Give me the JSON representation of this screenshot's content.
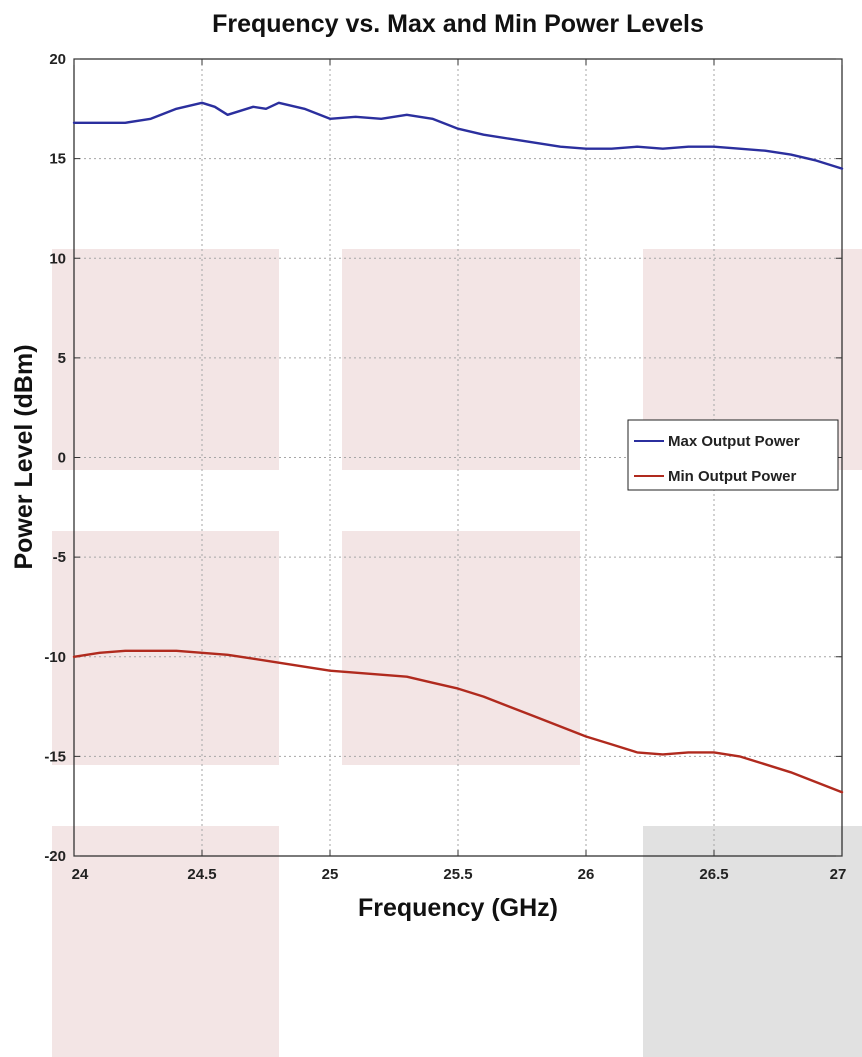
{
  "chart_data": {
    "type": "line",
    "title": "Frequency vs. Max and Min Power Levels",
    "xlabel": "Frequency (GHz)",
    "ylabel": "Power Level (dBm)",
    "xlim": [
      24,
      27
    ],
    "ylim": [
      -20,
      20
    ],
    "x_ticks": [
      "24",
      "24.5",
      "25",
      "25.5",
      "26",
      "26.5",
      "27"
    ],
    "y_ticks": [
      "20",
      "15",
      "10",
      "5",
      "0",
      "-5",
      "-10",
      "-15",
      "-20"
    ],
    "grid": true,
    "legend_position": "right",
    "series": [
      {
        "name": "Max Output Power",
        "color": "#2b2f9e",
        "x": [
          24.0,
          24.1,
          24.2,
          24.3,
          24.4,
          24.5,
          24.55,
          24.6,
          24.65,
          24.7,
          24.75,
          24.8,
          24.9,
          25.0,
          25.1,
          25.2,
          25.3,
          25.4,
          25.5,
          25.6,
          25.7,
          25.8,
          25.9,
          26.0,
          26.1,
          26.2,
          26.3,
          26.4,
          26.5,
          26.6,
          26.7,
          26.8,
          26.9,
          27.0
        ],
        "values": [
          16.8,
          16.8,
          16.8,
          17.0,
          17.5,
          17.8,
          17.6,
          17.2,
          17.4,
          17.6,
          17.5,
          17.8,
          17.5,
          17.0,
          17.1,
          17.0,
          17.2,
          17.0,
          16.5,
          16.2,
          16.0,
          15.8,
          15.6,
          15.5,
          15.5,
          15.6,
          15.5,
          15.6,
          15.6,
          15.5,
          15.4,
          15.2,
          14.9,
          14.5
        ]
      },
      {
        "name": "Min Output Power",
        "color": "#b02a1e",
        "x": [
          24.0,
          24.1,
          24.2,
          24.3,
          24.4,
          24.5,
          24.6,
          24.7,
          24.8,
          24.9,
          25.0,
          25.1,
          25.2,
          25.3,
          25.4,
          25.5,
          25.6,
          25.7,
          25.8,
          25.9,
          26.0,
          26.1,
          26.2,
          26.3,
          26.4,
          26.5,
          26.6,
          26.7,
          26.8,
          26.9,
          27.0
        ],
        "values": [
          -10.0,
          -9.8,
          -9.7,
          -9.7,
          -9.7,
          -9.8,
          -9.9,
          -10.1,
          -10.3,
          -10.5,
          -10.7,
          -10.8,
          -10.9,
          -11.0,
          -11.3,
          -11.6,
          -12.0,
          -12.5,
          -13.0,
          -13.5,
          -14.0,
          -14.4,
          -14.8,
          -14.9,
          -14.8,
          -14.8,
          -15.0,
          -15.4,
          -15.8,
          -16.3,
          -16.8
        ]
      }
    ]
  }
}
